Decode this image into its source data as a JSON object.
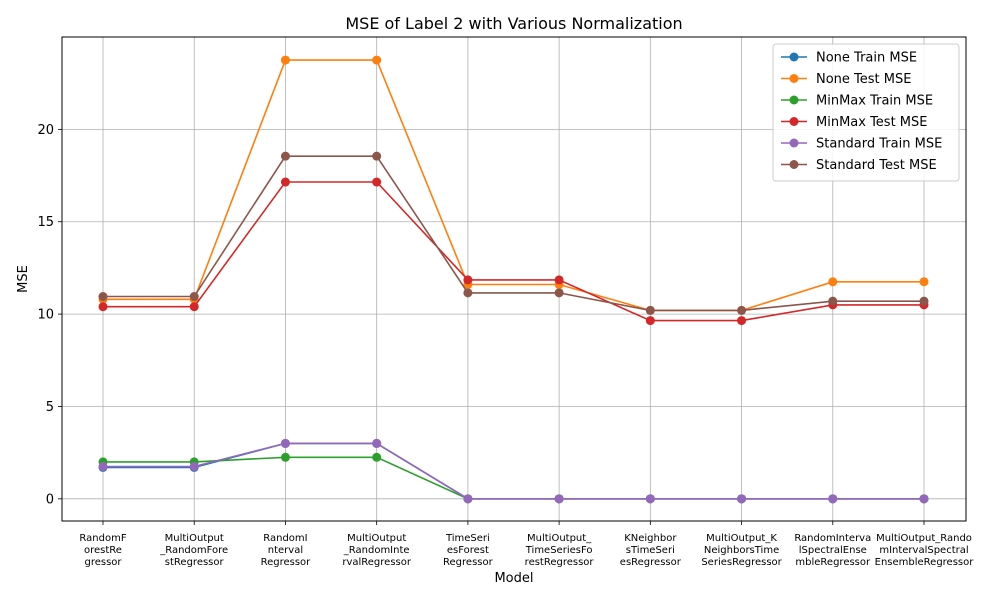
{
  "chart_data": {
    "type": "line",
    "title": "MSE of Label 2 with Various Normalization",
    "xlabel": "Model",
    "ylabel": "MSE",
    "ylim": [
      -1.2,
      25
    ],
    "yticks": [
      0,
      5,
      10,
      15,
      20
    ],
    "grid": true,
    "legend_position": "top-right",
    "categories": [
      [
        "RandomF",
        "orestRe",
        "gressor"
      ],
      [
        "MultiOutput",
        "_RandomFore",
        "stRegressor"
      ],
      [
        "RandomI",
        "nterval",
        "Regressor"
      ],
      [
        "MultiOutput",
        "_RandomInte",
        "rvalRegressor"
      ],
      [
        "TimeSeri",
        "esForest",
        "Regressor"
      ],
      [
        "MultiOutput_",
        "TimeSeriesFo",
        "restRegressor"
      ],
      [
        "KNeighbor",
        "sTimeSeri",
        "esRegressor"
      ],
      [
        "MultiOutput_K",
        "NeighborsTime",
        "SeriesRegressor"
      ],
      [
        "RandomInterva",
        "lSpectralEnse",
        "mbleRegressor"
      ],
      [
        "MultiOutput_Rando",
        "mIntervalSpectral",
        "EnsembleRegressor"
      ]
    ],
    "series": [
      {
        "name": "None Train MSE",
        "color": "#1f77b4",
        "values": [
          1.7,
          1.7,
          3.0,
          3.0,
          0.0,
          0.0,
          0.0,
          0.0,
          0.0,
          0.0
        ]
      },
      {
        "name": "None Test MSE",
        "color": "#ff7f0e",
        "values": [
          10.8,
          10.8,
          23.75,
          23.75,
          11.6,
          11.6,
          10.2,
          10.2,
          11.75,
          11.75
        ]
      },
      {
        "name": "MinMax Train MSE",
        "color": "#2ca02c",
        "values": [
          2.0,
          2.0,
          2.25,
          2.25,
          0.0,
          0.0,
          0.0,
          0.0,
          0.0,
          0.0
        ]
      },
      {
        "name": "MinMax Test MSE",
        "color": "#d62728",
        "values": [
          10.4,
          10.4,
          17.15,
          17.15,
          11.85,
          11.85,
          9.65,
          9.65,
          10.5,
          10.5
        ]
      },
      {
        "name": "Standard Train MSE",
        "color": "#9467bd",
        "values": [
          1.75,
          1.75,
          3.0,
          3.0,
          0.0,
          0.0,
          0.0,
          0.0,
          0.0,
          0.0
        ]
      },
      {
        "name": "Standard Test MSE",
        "color": "#8c564b",
        "values": [
          10.95,
          10.95,
          18.55,
          18.55,
          11.15,
          11.15,
          10.2,
          10.2,
          10.7,
          10.7
        ]
      }
    ]
  }
}
